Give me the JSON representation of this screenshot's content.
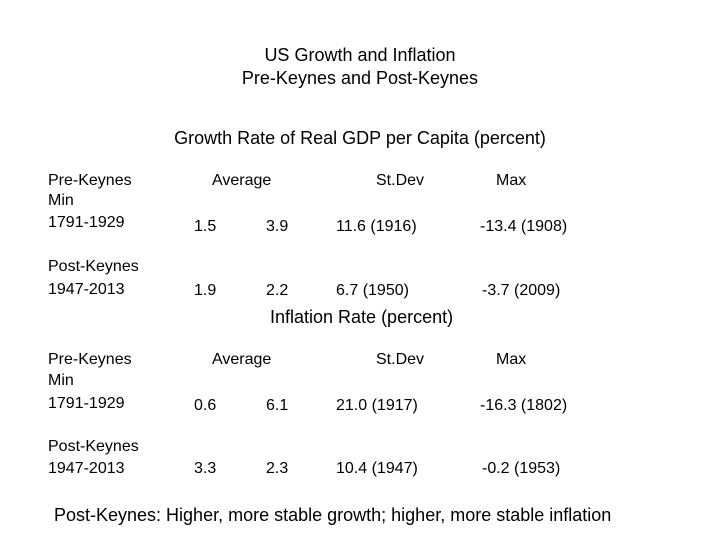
{
  "slide": {
    "title_line1": "US Growth and Inflation",
    "title_line2": "Pre-Keynes and Post-Keynes",
    "conclusion": "Post-Keynes:  Higher, more stable growth; higher, more stable inflation"
  },
  "growth_section": {
    "heading": "Growth Rate of Real GDP per Capita (percent)",
    "col_headers": {
      "average": "Average",
      "stdev": "St.Dev",
      "max": "Max"
    },
    "rows": [
      {
        "label_lines": [
          "Pre-Keynes",
          "Min",
          "1791-1929"
        ],
        "mean": "1.5",
        "second": "3.9",
        "third": "11.6 (1916)",
        "fourth": "-13.4 (1908)"
      },
      {
        "label_lines": [
          "Post-Keynes",
          "1947-2013"
        ],
        "mean": "1.9",
        "second": "2.2",
        "third": "6.7 (1950)",
        "fourth": "-3.7 (2009)"
      }
    ]
  },
  "inflation_section": {
    "heading": "Inflation Rate (percent)",
    "col_headers": {
      "average": "Average",
      "stdev": "St.Dev",
      "max": "Max"
    },
    "rows": [
      {
        "label_lines": [
          "Pre-Keynes",
          "Min",
          "1791-1929"
        ],
        "mean": "0.6",
        "second": "6.1",
        "third": "21.0 (1917)",
        "fourth": "-16.3 (1802)"
      },
      {
        "label_lines": [
          "Post-Keynes",
          "1947-2013"
        ],
        "mean": "3.3",
        "second": "2.3",
        "third": "10.4 (1947)",
        "fourth": "-0.2 (1953)"
      }
    ]
  }
}
